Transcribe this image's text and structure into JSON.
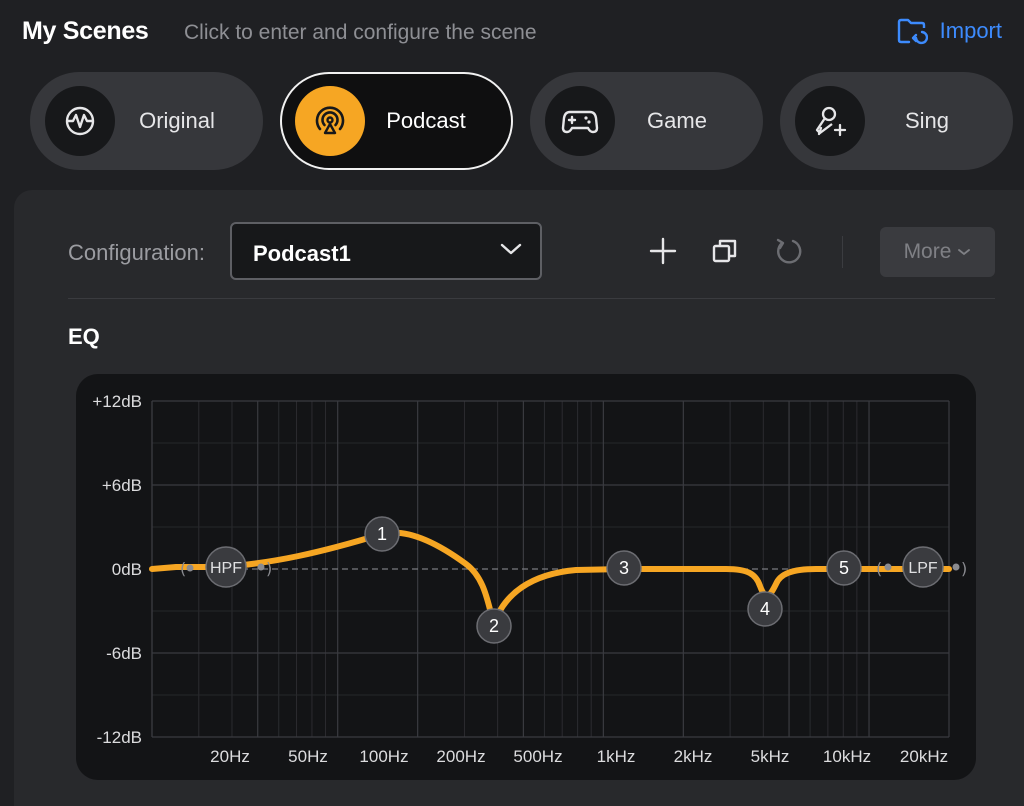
{
  "header": {
    "title": "My Scenes",
    "subtitle": "Click to enter and configure the scene",
    "import_label": "Import",
    "accent_color": "#3d8bfd"
  },
  "scenes": [
    {
      "label": "Original",
      "icon": "waveform-circle-icon",
      "active": false
    },
    {
      "label": "Podcast",
      "icon": "podcast-icon",
      "active": true
    },
    {
      "label": "Game",
      "icon": "gamepad-icon",
      "active": false
    },
    {
      "label": "Sing",
      "icon": "microphone-sparkle-icon",
      "active": false
    }
  ],
  "configuration": {
    "label": "Configuration:",
    "selected": "Podcast1",
    "tools": [
      "plus-icon",
      "duplicate-icon",
      "reset-icon"
    ],
    "more_label": "More"
  },
  "eq": {
    "title": "EQ",
    "curve_color": "#f6a623",
    "y_labels": [
      "+12dB",
      "+6dB",
      "0dB",
      "-6dB",
      "-12dB"
    ],
    "x_labels": [
      "20Hz",
      "50Hz",
      "100Hz",
      "200Hz",
      "500Hz",
      "1kHz",
      "2kHz",
      "5kHz",
      "10kHz",
      "20kHz"
    ],
    "filters": {
      "hpf": "HPF",
      "lpf": "LPF"
    },
    "bands": [
      {
        "label": "1",
        "gain_db": 2.5
      },
      {
        "label": "2",
        "gain_db": -4.0
      },
      {
        "label": "3",
        "gain_db": 0.0
      },
      {
        "label": "4",
        "gain_db": -2.8
      },
      {
        "label": "5",
        "gain_db": 0.0
      }
    ]
  }
}
